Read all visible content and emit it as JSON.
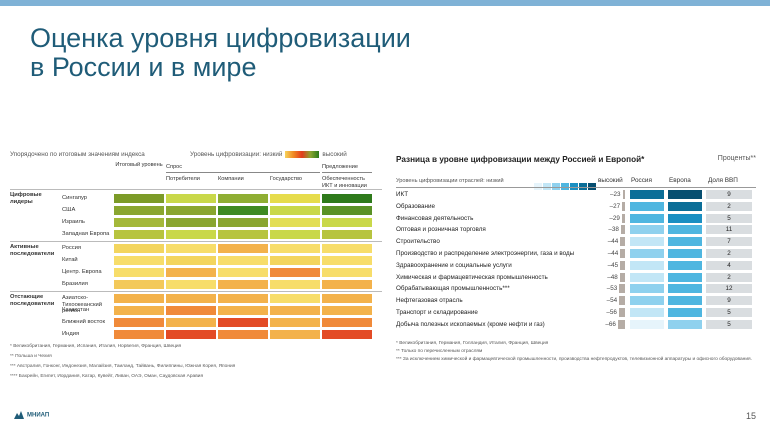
{
  "slide": {
    "title": "Оценка уровня цифровизации\nв России и в мире",
    "page_number": "15",
    "logo_text": "МНИАП"
  },
  "left_chart": {
    "sorted_note": "Упорядочено по итоговым значениям индекса",
    "level_label": "Уровень цифровизации: низкий",
    "level_high": "высокий",
    "header_groups": [
      {
        "label": "Итоговый уровень"
      },
      {
        "label": "Спрос"
      },
      {
        "label": "Предложение"
      }
    ],
    "columns": [
      "Потребители",
      "Компании",
      "Государство",
      "Обеспеченность ИКТ и инновации"
    ],
    "groups": [
      {
        "name": "Цифровые лидеры"
      },
      {
        "name": "Активные последователи"
      },
      {
        "name": "Отстающие последователи"
      }
    ],
    "rows": [
      {
        "label": "Сингапур",
        "group": 0,
        "colors": [
          "#7c9b28",
          "#c9d84a",
          "#8fae33",
          "#e6dc4c",
          "#2e7a1b"
        ]
      },
      {
        "label": "США",
        "group": 0,
        "colors": [
          "#8aa630",
          "#8aa630",
          "#3f8a22",
          "#c9d84a",
          "#5a9226"
        ]
      },
      {
        "label": "Израиль",
        "group": 0,
        "colors": [
          "#a4b83a",
          "#8aa630",
          "#8aa630",
          "#e2de55",
          "#c9d84a"
        ]
      },
      {
        "label": "Западная Европа",
        "group": 0,
        "colors": [
          "#b7c43f",
          "#c9d84a",
          "#b7c43f",
          "#c9d84a",
          "#b7c43f"
        ]
      },
      {
        "label": "Россия",
        "group": 1,
        "colors": [
          "#f3d55e",
          "#f7dd6a",
          "#f3b24b",
          "#f7dd6a",
          "#f7dd6a"
        ]
      },
      {
        "label": "Китай",
        "group": 1,
        "colors": [
          "#f7dd6a",
          "#f3d55e",
          "#f7dd6a",
          "#f3d55e",
          "#f7dd6a"
        ]
      },
      {
        "label": "Центр. Европа",
        "group": 1,
        "colors": [
          "#f7dd6a",
          "#f3b24b",
          "#f7dd6a",
          "#f08a3a",
          "#f7dd6a"
        ]
      },
      {
        "label": "Бразилия",
        "group": 1,
        "colors": [
          "#f3c95a",
          "#f7dd6a",
          "#f3b24b",
          "#f7dd6a",
          "#f3b24b"
        ]
      },
      {
        "label": "Азиатско-Тихоокеанский регион",
        "group": 2,
        "colors": [
          "#f3b24b",
          "#f3b24b",
          "#f3b24b",
          "#f7dd6a",
          "#f3b24b"
        ]
      },
      {
        "label": "Казахстан",
        "group": 2,
        "colors": [
          "#f3b24b",
          "#f08a3a",
          "#f3b24b",
          "#f3b24b",
          "#f3b24b"
        ]
      },
      {
        "label": "Ближний восток",
        "group": 2,
        "colors": [
          "#f08a3a",
          "#f3b24b",
          "#e34b26",
          "#f3b24b",
          "#f08a3a"
        ]
      },
      {
        "label": "Индия",
        "group": 2,
        "colors": [
          "#f08a3a",
          "#e34b26",
          "#f08a3a",
          "#f3b24b",
          "#e34b26"
        ]
      }
    ],
    "notes": [
      "* Великобритания, Германия, Испания, Италия, Норвегия, Франция, Швеция",
      "** Польша и Чехия",
      "*** Австралия, Гонконг, Индонезия, Малайзия, Таиланд, Тайвань, Филиппины, Южная Корея, Япония",
      "**** Бахрейн, Египет, Иордания, Катар, Кувейт, Ливан, ОАЭ, Оман, Саудовская Аравия"
    ]
  },
  "right_chart": {
    "title": "Разница в уровне цифровизации между Россией и Европой*",
    "unit": "Проценты**",
    "level_label": "Уровень цифровизации отраслей: низкий",
    "level_high": "высокий",
    "scale_colors": [
      "#e6f4fb",
      "#c2e6f6",
      "#8fd1ee",
      "#4fb6e0",
      "#1a8fc2",
      "#0b6e98",
      "#064e70"
    ],
    "col_russia": "Россия",
    "col_europe": "Европа",
    "col_gdp": "Доля ВВП",
    "color_scale": {
      "min": -66,
      "max": 0
    }
  },
  "chart_data": {
    "type": "bar",
    "categories": [
      "ИКТ",
      "Образование",
      "Финансовая деятельность",
      "Оптовая и розничная торговля",
      "Строительство",
      "Производство и распределение электроэнергии, газа и воды",
      "Здравоохранение и социальные услуги",
      "Химическая и фармацевтическая промышленность",
      "Обрабатывающая промышленность***",
      "Нефтегазовая отрасль",
      "Транспорт и складирование",
      "Добыча полезных ископаемых (кроме нефти и газ)"
    ],
    "values": [
      -23,
      -27,
      -29,
      -38,
      -44,
      -44,
      -45,
      -48,
      -53,
      -54,
      -56,
      -66
    ],
    "value_labels": [
      "–23",
      "–27",
      "–29",
      "–38",
      "–44",
      "–44",
      "–45",
      "–48",
      "–53",
      "–54",
      "–56",
      "–66"
    ],
    "russia_level": [
      5,
      3,
      3,
      2,
      1,
      2,
      1,
      1,
      2,
      2,
      1,
      0
    ],
    "europe_level": [
      6,
      5,
      4,
      3,
      3,
      3,
      3,
      3,
      3,
      3,
      3,
      2
    ],
    "gdp_share": [
      "9",
      "2",
      "5",
      "11",
      "7",
      "2",
      "4",
      "2",
      "12",
      "9",
      "5",
      "5"
    ],
    "notes": [
      "* Великобритания, Германия, Голландия, Италия, Франция, Швеция",
      "** Только по перечисленным отраслям",
      "*** За исключением химической и фармацевтической промышленности, производства нефтепродуктов, телевизионной аппаратуры и офисного оборудования."
    ]
  }
}
